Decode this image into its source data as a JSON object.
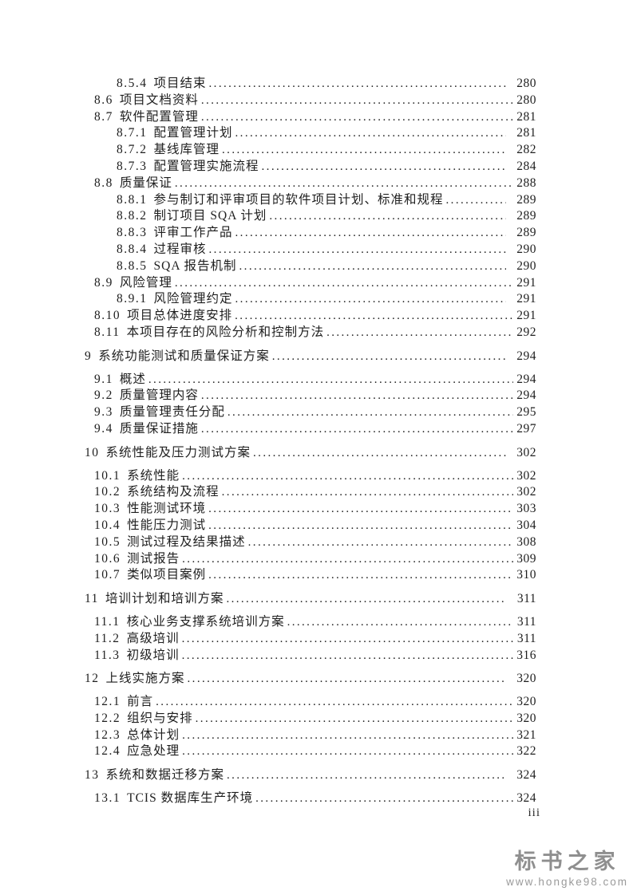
{
  "footer": {
    "page_label": "iii"
  },
  "watermark": {
    "brand": "标书之家",
    "url": "www.hongke98.com"
  },
  "colors": {
    "text": "#1e1e1e",
    "watermark_gray": "#8f8f8f",
    "background": "#ffffff"
  },
  "toc": {
    "entries": [
      {
        "level": 3,
        "num": "8.5.4",
        "title": "项目结束",
        "page": "280"
      },
      {
        "level": 2,
        "num": "8.6",
        "title": "项目文档资料",
        "page": "280"
      },
      {
        "level": 2,
        "num": "8.7",
        "title": "软件配置管理",
        "page": "281"
      },
      {
        "level": 3,
        "num": "8.7.1",
        "title": "配置管理计划",
        "page": "281"
      },
      {
        "level": 3,
        "num": "8.7.2",
        "title": "基线库管理",
        "page": "282"
      },
      {
        "level": 3,
        "num": "8.7.3",
        "title": "配置管理实施流程",
        "page": "284"
      },
      {
        "level": 2,
        "num": "8.8",
        "title": "质量保证",
        "page": "288"
      },
      {
        "level": 3,
        "num": "8.8.1",
        "title": "参与制订和评审项目的软件项目计划、标准和规程",
        "page": "289"
      },
      {
        "level": 3,
        "num": "8.8.2",
        "title": "制订项目 SQA 计划",
        "page": "289"
      },
      {
        "level": 3,
        "num": "8.8.3",
        "title": "评审工作产品",
        "page": "289"
      },
      {
        "level": 3,
        "num": "8.8.4",
        "title": "过程审核",
        "page": "290"
      },
      {
        "level": 3,
        "num": "8.8.5",
        "title": "SQA 报告机制",
        "page": "290"
      },
      {
        "level": 2,
        "num": "8.9",
        "title": "风险管理",
        "page": "291"
      },
      {
        "level": 3,
        "num": "8.9.1",
        "title": "风险管理约定",
        "page": "291"
      },
      {
        "level": 2,
        "num": "8.10",
        "title": "项目总体进度安排",
        "page": "291"
      },
      {
        "level": 2,
        "num": "8.11",
        "title": "本项目存在的风险分析和控制方法",
        "page": "292"
      },
      {
        "level": 1,
        "num": "9",
        "title": "系统功能测试和质量保证方案",
        "page": "294"
      },
      {
        "level": 2,
        "num": "9.1",
        "title": "概述",
        "page": "294"
      },
      {
        "level": 2,
        "num": "9.2",
        "title": "质量管理内容",
        "page": "294"
      },
      {
        "level": 2,
        "num": "9.3",
        "title": "质量管理责任分配",
        "page": "295"
      },
      {
        "level": 2,
        "num": "9.4",
        "title": "质量保证措施",
        "page": "297"
      },
      {
        "level": 1,
        "num": "10",
        "title": "系统性能及压力测试方案",
        "page": "302"
      },
      {
        "level": 2,
        "num": "10.1",
        "title": "系统性能",
        "page": "302"
      },
      {
        "level": 2,
        "num": "10.2",
        "title": "系统结构及流程",
        "page": "302"
      },
      {
        "level": 2,
        "num": "10.3",
        "title": "性能测试环境",
        "page": "303"
      },
      {
        "level": 2,
        "num": "10.4",
        "title": "性能压力测试",
        "page": "304"
      },
      {
        "level": 2,
        "num": "10.5",
        "title": "测试过程及结果描述",
        "page": "308"
      },
      {
        "level": 2,
        "num": "10.6",
        "title": "测试报告",
        "page": "309"
      },
      {
        "level": 2,
        "num": "10.7",
        "title": "类似项目案例",
        "page": "310"
      },
      {
        "level": 1,
        "num": "11",
        "title": "培训计划和培训方案",
        "page": "311"
      },
      {
        "level": 2,
        "num": "11.1",
        "title": "核心业务支撑系统培训方案",
        "page": "311"
      },
      {
        "level": 2,
        "num": "11.2",
        "title": "高级培训",
        "page": "311"
      },
      {
        "level": 2,
        "num": "11.3",
        "title": "初级培训",
        "page": "316"
      },
      {
        "level": 1,
        "num": "12",
        "title": "上线实施方案",
        "page": "320"
      },
      {
        "level": 2,
        "num": "12.1",
        "title": "前言",
        "page": "320"
      },
      {
        "level": 2,
        "num": "12.2",
        "title": "组织与安排",
        "page": "320"
      },
      {
        "level": 2,
        "num": "12.3",
        "title": "总体计划",
        "page": "321"
      },
      {
        "level": 2,
        "num": "12.4",
        "title": "应急处理",
        "page": "322"
      },
      {
        "level": 1,
        "num": "13",
        "title": "系统和数据迁移方案",
        "page": "324"
      },
      {
        "level": 2,
        "num": "13.1",
        "title": "TCIS 数据库生产环境",
        "page": "324"
      }
    ]
  }
}
